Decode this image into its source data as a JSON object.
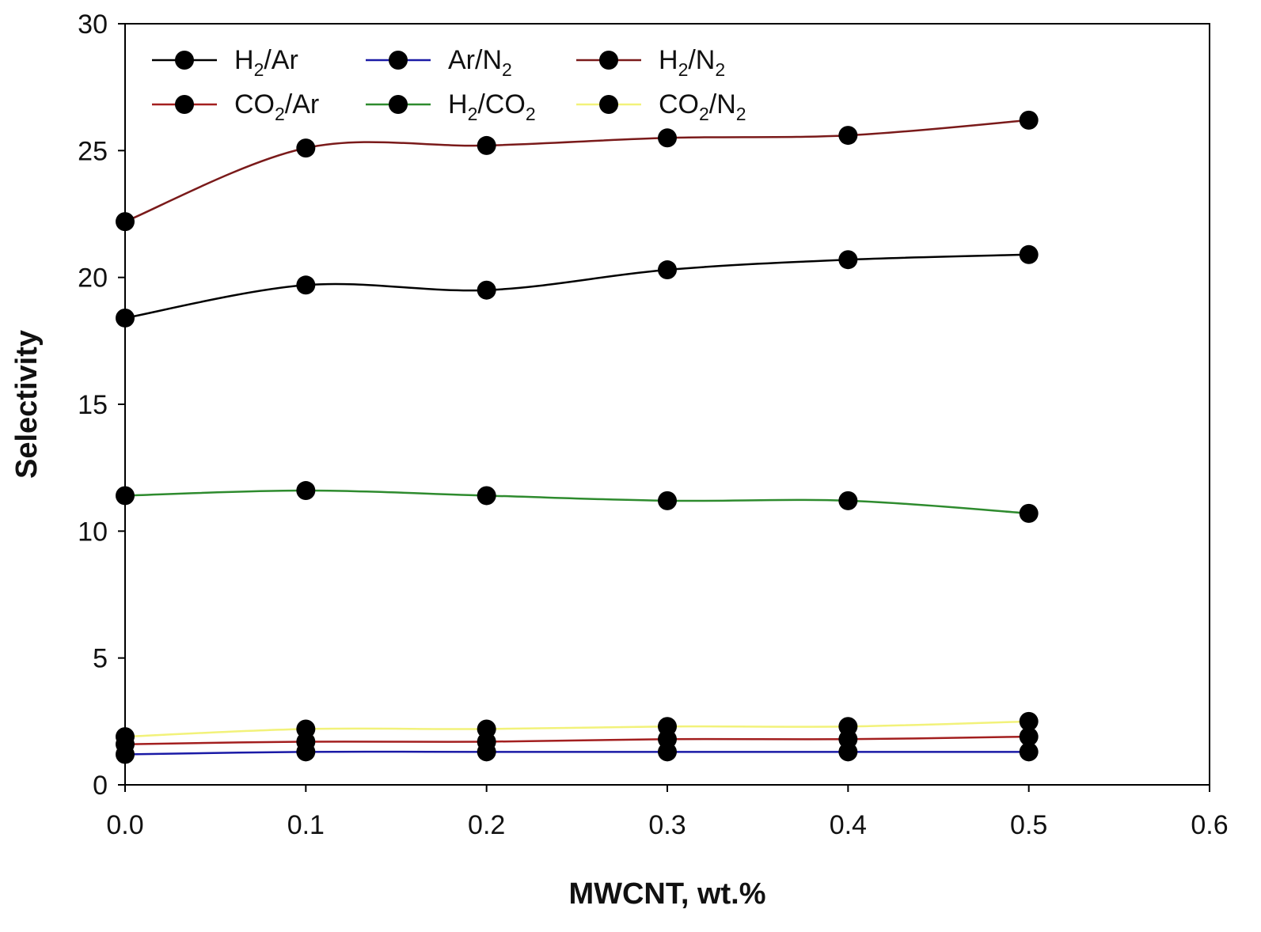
{
  "chart_data": {
    "type": "line",
    "x": [
      0.0,
      0.1,
      0.2,
      0.3,
      0.4,
      0.5
    ],
    "xlabel": "MWCNT, wt.%",
    "ylabel": "Selectivity",
    "xlim": [
      0.0,
      0.6
    ],
    "ylim": [
      0,
      30
    ],
    "xticks": [
      "0.0",
      "0.1",
      "0.2",
      "0.3",
      "0.4",
      "0.5",
      "0.6"
    ],
    "yticks": [
      "0",
      "5",
      "10",
      "15",
      "20",
      "25",
      "30"
    ],
    "legend_position": "top-left",
    "series": [
      {
        "name": "H2/Ar",
        "label_parts": [
          [
            "H",
            ""
          ],
          [
            "2",
            "sub"
          ],
          [
            "/Ar",
            ""
          ]
        ],
        "color": "#000000",
        "values": [
          18.4,
          19.7,
          19.5,
          20.3,
          20.7,
          20.9
        ]
      },
      {
        "name": "Ar/N2",
        "label_parts": [
          [
            "Ar/N",
            ""
          ],
          [
            "2",
            "sub"
          ]
        ],
        "color": "#1a1aa6",
        "values": [
          1.2,
          1.3,
          1.3,
          1.3,
          1.3,
          1.3
        ]
      },
      {
        "name": "H2/N2",
        "label_parts": [
          [
            "H",
            ""
          ],
          [
            "2",
            "sub"
          ],
          [
            "/N",
            ""
          ],
          [
            "2",
            "sub"
          ]
        ],
        "color": "#7a1a1a",
        "values": [
          22.2,
          25.1,
          25.2,
          25.5,
          25.6,
          26.2
        ]
      },
      {
        "name": "CO2/Ar",
        "label_parts": [
          [
            "CO",
            ""
          ],
          [
            "2",
            "sub"
          ],
          [
            "/Ar",
            ""
          ]
        ],
        "color": "#a31f1f",
        "values": [
          1.6,
          1.7,
          1.7,
          1.8,
          1.8,
          1.9
        ]
      },
      {
        "name": "H2/CO2",
        "label_parts": [
          [
            "H",
            ""
          ],
          [
            "2",
            "sub"
          ],
          [
            "/CO",
            ""
          ],
          [
            "2",
            "sub"
          ]
        ],
        "color": "#2e8b2e",
        "values": [
          11.4,
          11.6,
          11.4,
          11.2,
          11.2,
          10.7
        ]
      },
      {
        "name": "CO2/N2",
        "label_parts": [
          [
            "CO",
            ""
          ],
          [
            "2",
            "sub"
          ],
          [
            "/N",
            ""
          ],
          [
            "2",
            "sub"
          ]
        ],
        "color": "#f2f27a",
        "values": [
          1.9,
          2.2,
          2.2,
          2.3,
          2.3,
          2.5
        ]
      }
    ]
  }
}
